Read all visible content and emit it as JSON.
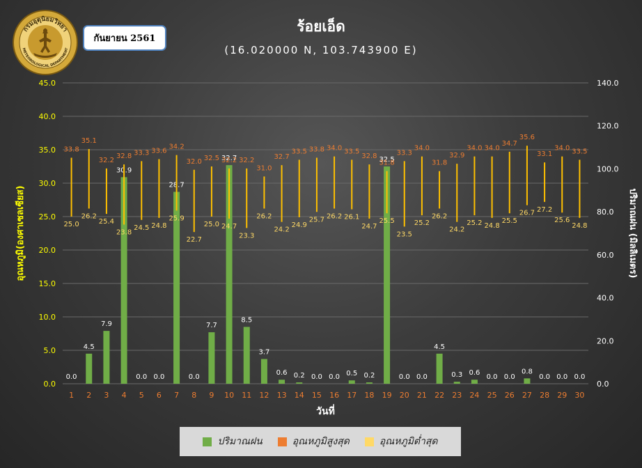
{
  "header": {
    "month_label": "กันยายน 2561",
    "logo_top_text": "กรมอุตุนิยมวิทยา",
    "logo_bottom_text": "METEOROLOGICAL DEPARTMENT"
  },
  "colors": {
    "rain": "#70ad47",
    "tmax_label": "#ed7d31",
    "tmin_label": "#ffd966",
    "range_line": "#ffc000",
    "axis_left": "#ffff00",
    "axis_right": "#ffffff",
    "x_tick": "#ed7d31",
    "grid": "#6a6a6a"
  },
  "icons": {
    "logo": "meteorological-department-seal-icon"
  },
  "chart_data": {
    "type": "bar",
    "title": "ร้อยเอ็ด",
    "subtitle": "(16.020000 N, 103.743900 E)",
    "xlabel": "วันที่",
    "ylabel_left": "อุณหภูมิ(องศาเซลเซียส)",
    "ylabel_right": "ปริมาณฝน (มิลลิเมตร)",
    "ylim_left": [
      0,
      45
    ],
    "ylim_right": [
      0,
      140
    ],
    "yticks_left": [
      "0.0",
      "5.0",
      "10.0",
      "15.0",
      "20.0",
      "25.0",
      "30.0",
      "35.0",
      "40.0",
      "45.0"
    ],
    "yticks_right": [
      "0.0",
      "20.0",
      "40.0",
      "60.0",
      "80.0",
      "100.0",
      "120.0",
      "140.0"
    ],
    "categories": [
      "1",
      "2",
      "3",
      "4",
      "5",
      "6",
      "7",
      "8",
      "9",
      "10",
      "11",
      "12",
      "13",
      "14",
      "15",
      "16",
      "17",
      "18",
      "19",
      "20",
      "21",
      "22",
      "23",
      "24",
      "25",
      "26",
      "27",
      "28",
      "29",
      "30"
    ],
    "grid": true,
    "legend_position": "bottom",
    "series": [
      {
        "name": "ปริมาณฝน",
        "type": "bar",
        "axis": "left",
        "values": [
          0.0,
          4.5,
          7.9,
          30.9,
          0.0,
          0.0,
          28.7,
          0.0,
          7.7,
          32.7,
          8.5,
          3.7,
          0.6,
          0.2,
          0.0,
          0.0,
          0.5,
          0.2,
          32.5,
          0.0,
          0.0,
          4.5,
          0.3,
          0.6,
          0.0,
          0.0,
          0.8,
          0.0,
          0.0,
          0.0
        ]
      },
      {
        "name": "อุณหภูมิสูงสุด",
        "type": "range_high",
        "axis": "left",
        "values": [
          33.8,
          35.1,
          32.2,
          32.8,
          33.3,
          33.6,
          34.2,
          32.0,
          32.5,
          32.2,
          32.2,
          31.0,
          32.7,
          33.5,
          33.8,
          34.0,
          33.5,
          32.8,
          31.8,
          33.3,
          34.0,
          31.8,
          32.9,
          34.0,
          34.0,
          34.7,
          35.6,
          33.1,
          34.0,
          33.5
        ]
      },
      {
        "name": "อุณหภูมิต่ำสุด",
        "type": "range_low",
        "axis": "left",
        "values": [
          25.0,
          26.2,
          25.4,
          23.8,
          24.5,
          24.8,
          25.9,
          22.7,
          25.0,
          24.7,
          23.3,
          26.2,
          24.2,
          24.9,
          25.7,
          26.2,
          26.1,
          24.7,
          25.5,
          23.5,
          25.2,
          26.2,
          24.2,
          25.2,
          24.8,
          25.5,
          26.7,
          27.2,
          25.6,
          24.8
        ]
      }
    ]
  }
}
